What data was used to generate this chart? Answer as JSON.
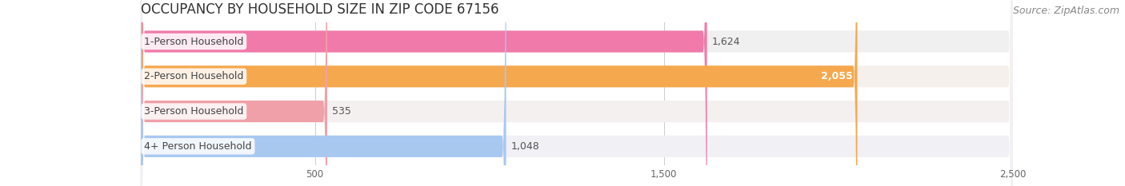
{
  "title": "OCCUPANCY BY HOUSEHOLD SIZE IN ZIP CODE 67156",
  "source": "Source: ZipAtlas.com",
  "categories": [
    "1-Person Household",
    "2-Person Household",
    "3-Person Household",
    "4+ Person Household"
  ],
  "values": [
    1624,
    2055,
    535,
    1048
  ],
  "bar_colors": [
    "#f07aaa",
    "#f5a84e",
    "#f0a0a8",
    "#a8c8f0"
  ],
  "bar_bg_colors": [
    "#f0f0f0",
    "#f5f0ec",
    "#f5f0f0",
    "#f0f0f5"
  ],
  "value_labels": [
    "1,624",
    "2,055",
    "535",
    "1,048"
  ],
  "value_inside": [
    false,
    true,
    false,
    false
  ],
  "xlim": [
    0,
    2500
  ],
  "xticks": [
    500,
    1500,
    2500
  ],
  "xtick_labels": [
    "500",
    "1,500",
    "2,500"
  ],
  "background_color": "#ffffff",
  "title_fontsize": 12,
  "source_fontsize": 9,
  "label_fontsize": 9,
  "value_fontsize": 9
}
